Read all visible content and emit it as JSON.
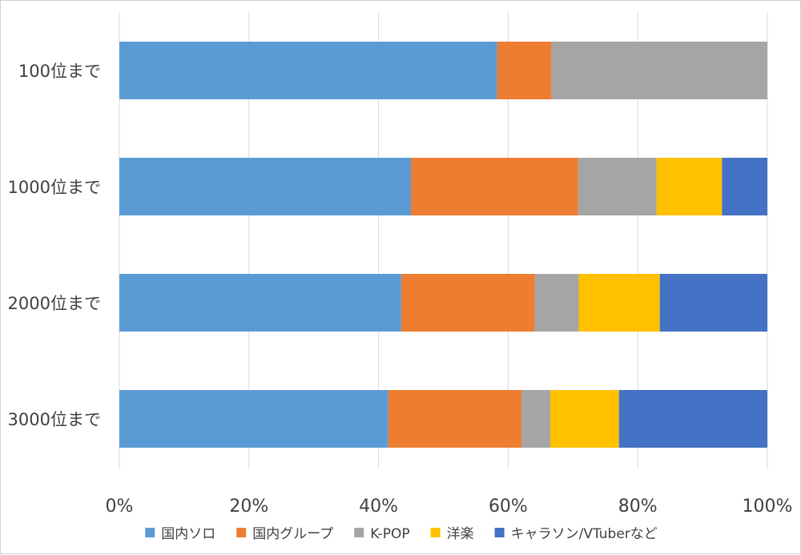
{
  "chart_data": {
    "type": "bar",
    "orientation": "horizontal",
    "stacked": "percent",
    "categories": [
      "100位まで",
      "1000位まで",
      "2000位まで",
      "3000位まで"
    ],
    "series": [
      {
        "name": "国内ソロ",
        "color": "#5b9bd5",
        "values": [
          58.3,
          45.0,
          43.5,
          41.5
        ]
      },
      {
        "name": "国内グループ",
        "color": "#ed7d31",
        "values": [
          8.4,
          25.8,
          20.6,
          20.6
        ]
      },
      {
        "name": "K-POP",
        "color": "#a5a5a5",
        "values": [
          33.3,
          12.1,
          6.8,
          4.4
        ]
      },
      {
        "name": "洋楽",
        "color": "#ffc000",
        "values": [
          0,
          10.1,
          12.5,
          10.6
        ]
      },
      {
        "name": "キャラソン/VTuberなど",
        "color": "#4472c4",
        "values": [
          0,
          7.0,
          16.6,
          22.9
        ]
      }
    ],
    "xaxis": {
      "ticks": [
        "0%",
        "20%",
        "40%",
        "60%",
        "80%",
        "100%"
      ],
      "range": [
        0,
        100
      ]
    },
    "grid": true,
    "legend_position": "bottom"
  }
}
